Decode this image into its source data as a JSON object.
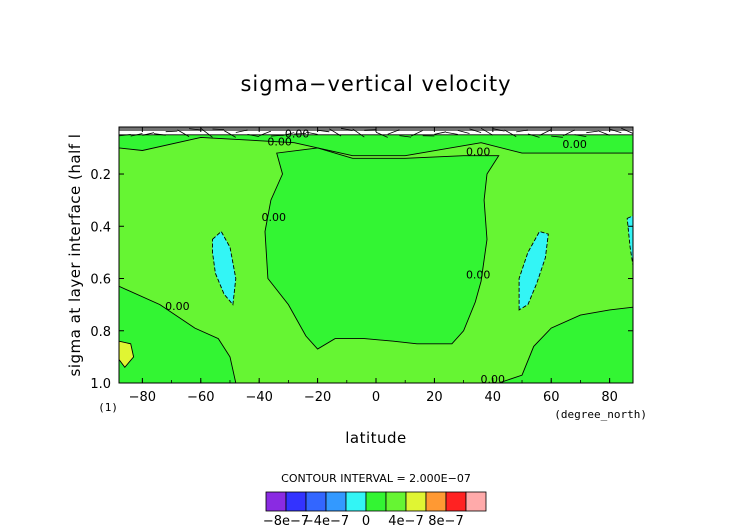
{
  "chart_data": {
    "type": "contour",
    "title": "sigma−vertical velocity",
    "xlabel": "latitude",
    "x_units": "(degree_north)",
    "ylabel": "sigma at layer interface (half l",
    "y_units": "(1)",
    "xlim": [
      -88,
      88
    ],
    "ylim": [
      1.0,
      0.02
    ],
    "y_inverted": true,
    "x_ticks": [
      -80,
      -60,
      -40,
      -20,
      0,
      20,
      40,
      60,
      80
    ],
    "x_tick_labels": [
      "−80",
      "−60",
      "−40",
      "−20",
      "0",
      "20",
      "40",
      "60",
      "80"
    ],
    "y_ticks": [
      0.2,
      0.4,
      0.6,
      0.8,
      1.0
    ],
    "y_tick_labels": [
      "0.2",
      "0.4",
      "0.6",
      "0.8",
      "1.0"
    ],
    "contour_interval_text": "CONTOUR INTERVAL = 2.000E−07",
    "contour_line_label": "0.00",
    "regions": [
      {
        "fill": "#66f533",
        "level": "0 to 2e-7",
        "polygon": [
          [
            -88,
            0.05
          ],
          [
            88,
            0.05
          ],
          [
            88,
            1.0
          ],
          [
            -88,
            1.0
          ]
        ]
      },
      {
        "fill": "#33f533",
        "level": "-2e-7 to 0",
        "polygon": [
          [
            -88,
            0.05
          ],
          [
            88,
            0.05
          ],
          [
            88,
            0.12
          ],
          [
            50,
            0.12
          ],
          [
            36,
            0.08
          ],
          [
            10,
            0.13
          ],
          [
            -8,
            0.13
          ],
          [
            -28,
            0.08
          ],
          [
            -60,
            0.06
          ],
          [
            -80,
            0.11
          ],
          [
            -88,
            0.1
          ]
        ]
      },
      {
        "fill": "#33f533",
        "level": "-2e-7 to 0",
        "polygon": [
          [
            -26,
            0.15
          ],
          [
            -22,
            0.15
          ],
          [
            -24,
            0.2
          ]
        ]
      },
      {
        "fill": "#33f533",
        "level": "-2e-7 to 0",
        "polygon": [
          [
            -34,
            0.12
          ],
          [
            -32,
            0.2
          ],
          [
            -36,
            0.3
          ],
          [
            -38,
            0.42
          ],
          [
            -37,
            0.6
          ],
          [
            -30,
            0.7
          ],
          [
            -24,
            0.82
          ],
          [
            -20,
            0.87
          ],
          [
            -14,
            0.83
          ],
          [
            -4,
            0.83
          ],
          [
            6,
            0.84
          ],
          [
            14,
            0.85
          ],
          [
            26,
            0.85
          ],
          [
            30,
            0.8
          ],
          [
            34,
            0.69
          ],
          [
            36,
            0.61
          ],
          [
            38,
            0.45
          ],
          [
            37,
            0.3
          ],
          [
            38,
            0.2
          ],
          [
            42,
            0.13
          ],
          [
            30,
            0.13
          ],
          [
            10,
            0.14
          ],
          [
            -8,
            0.14
          ],
          [
            -20,
            0.1
          ]
        ]
      },
      {
        "fill": "#33f533",
        "level": "-2e-7 to 0",
        "polygon": [
          [
            -88,
            0.63
          ],
          [
            -74,
            0.7
          ],
          [
            -62,
            0.79
          ],
          [
            -54,
            0.83
          ],
          [
            -50,
            0.9
          ],
          [
            -48,
            1.0
          ],
          [
            -88,
            1.0
          ]
        ]
      },
      {
        "fill": "#33f533",
        "level": "-2e-7 to 0",
        "polygon": [
          [
            50,
            0.97
          ],
          [
            54,
            0.86
          ],
          [
            60,
            0.79
          ],
          [
            70,
            0.74
          ],
          [
            80,
            0.72
          ],
          [
            88,
            0.71
          ],
          [
            88,
            1.0
          ],
          [
            42,
            1.0
          ]
        ]
      },
      {
        "fill": "#33f5f5",
        "level": "-4e-7 to -2e-7",
        "polygon": [
          [
            -56,
            0.45
          ],
          [
            -53,
            0.42
          ],
          [
            -50,
            0.48
          ],
          [
            -48,
            0.6
          ],
          [
            -49,
            0.7
          ],
          [
            -52,
            0.66
          ],
          [
            -55,
            0.58
          ],
          [
            -56,
            0.5
          ]
        ]
      },
      {
        "fill": "#33f5f5",
        "level": "-4e-7 to -2e-7",
        "polygon": [
          [
            49,
            0.72
          ],
          [
            49,
            0.6
          ],
          [
            52,
            0.5
          ],
          [
            56,
            0.42
          ],
          [
            59,
            0.43
          ],
          [
            58,
            0.52
          ],
          [
            55,
            0.62
          ],
          [
            52,
            0.7
          ]
        ]
      },
      {
        "fill": "#33f5f5",
        "level": "-4e-7 to -2e-7",
        "polygon": [
          [
            86,
            0.37
          ],
          [
            88,
            0.36
          ],
          [
            88,
            0.55
          ],
          [
            87,
            0.48
          ]
        ]
      },
      {
        "fill": "#e0f533",
        "level": "2e-7 to 4e-7",
        "polygon": [
          [
            -88,
            0.84
          ],
          [
            -84,
            0.85
          ],
          [
            -83,
            0.9
          ],
          [
            -86,
            0.94
          ],
          [
            -88,
            0.91
          ]
        ]
      }
    ],
    "contour_labels": [
      {
        "text": "0.00",
        "x": -27,
        "y": 0.06
      },
      {
        "text": "0.00",
        "x": -33,
        "y": 0.09
      },
      {
        "text": "0.00",
        "x": 35,
        "y": 0.13
      },
      {
        "text": "0.00",
        "x": 68,
        "y": 0.1
      },
      {
        "text": "0.00",
        "x": -35,
        "y": 0.38
      },
      {
        "text": "0.00",
        "x": 35,
        "y": 0.6
      },
      {
        "text": "0.00",
        "x": -68,
        "y": 0.72
      },
      {
        "text": "0.00",
        "x": 40,
        "y": 1.0
      }
    ],
    "colorbar": {
      "colors": [
        "#8a2be2",
        "#3333ff",
        "#3366ff",
        "#3399ff",
        "#33f5f5",
        "#33f533",
        "#66f533",
        "#e0f533",
        "#ff9933",
        "#ff2222",
        "#ffaaaa"
      ],
      "tick_labels": [
        "−8e−7",
        "−4e−7",
        "0",
        "4e−7",
        "8e−7"
      ],
      "label_positions": [
        1,
        3,
        5,
        7,
        9
      ]
    }
  }
}
